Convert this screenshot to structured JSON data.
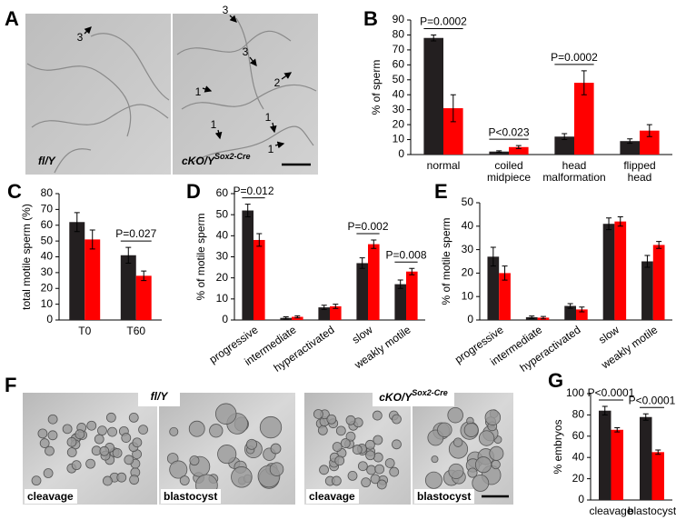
{
  "chart_data": [
    {
      "type": "bar",
      "panel": "B",
      "y_label": "% of sperm",
      "categories": [
        [
          "normal"
        ],
        [
          "coiled",
          "midpiece"
        ],
        [
          "head",
          "malformation"
        ],
        [
          "flipped",
          "head"
        ]
      ],
      "series": [
        {
          "color": "#231f20",
          "values": [
            78,
            2,
            12,
            9
          ],
          "errors": [
            2,
            0.5,
            2,
            1.5
          ]
        },
        {
          "color": "#ff0000",
          "values": [
            31,
            5,
            48,
            16
          ],
          "errors": [
            9,
            1,
            8,
            4
          ]
        }
      ],
      "annotations": [
        "P=0.0002",
        "P<0.023",
        "P=0.0002",
        null
      ],
      "ylim": [
        0,
        90
      ],
      "yticks": [
        0,
        10,
        20,
        30,
        40,
        50,
        60,
        70,
        80,
        90
      ]
    },
    {
      "type": "bar",
      "panel": "C",
      "y_label": "total motile sperm (%)",
      "categories": [
        [
          "T0"
        ],
        [
          "T60"
        ]
      ],
      "series": [
        {
          "color": "#231f20",
          "values": [
            62,
            41
          ],
          "errors": [
            6,
            5
          ]
        },
        {
          "color": "#ff0000",
          "values": [
            51,
            28
          ],
          "errors": [
            6,
            3
          ]
        }
      ],
      "annotations": [
        null,
        "P=0.027"
      ],
      "ylim": [
        0,
        80
      ],
      "yticks": [
        0,
        10,
        20,
        30,
        40,
        50,
        60,
        70,
        80
      ]
    },
    {
      "type": "bar",
      "panel": "D",
      "y_label": "% of motile sperm",
      "categories": [
        [
          "progressive"
        ],
        [
          "intermediate"
        ],
        [
          "hyperactivated"
        ],
        [
          "slow"
        ],
        [
          "weakly motile"
        ]
      ],
      "series": [
        {
          "color": "#231f20",
          "values": [
            52,
            1,
            6,
            27,
            17
          ],
          "errors": [
            3,
            0.5,
            1,
            2.5,
            2
          ]
        },
        {
          "color": "#ff0000",
          "values": [
            38,
            1.5,
            6.5,
            36,
            23
          ],
          "errors": [
            3,
            0.5,
            1,
            2,
            1.5
          ]
        }
      ],
      "annotations": [
        "P=0.012",
        null,
        null,
        "P=0.002",
        "P=0.008"
      ],
      "ylim": [
        0,
        60
      ],
      "yticks": [
        0,
        10,
        20,
        30,
        40,
        50,
        60
      ]
    },
    {
      "type": "bar",
      "panel": "E",
      "y_label": "% of motile sperm",
      "categories": [
        [
          "progressive"
        ],
        [
          "intermediate"
        ],
        [
          "hyperactivated"
        ],
        [
          "slow"
        ],
        [
          "weakly motile"
        ]
      ],
      "series": [
        {
          "color": "#231f20",
          "values": [
            27,
            1.2,
            6,
            41,
            25
          ],
          "errors": [
            4,
            0.5,
            1,
            2.5,
            2.5
          ]
        },
        {
          "color": "#ff0000",
          "values": [
            20,
            1,
            4.5,
            42,
            32
          ],
          "errors": [
            3,
            0.5,
            1,
            2,
            1.5
          ]
        }
      ],
      "annotations": [
        null,
        null,
        null,
        null,
        null
      ],
      "ylim": [
        0,
        50
      ],
      "yticks": [
        0,
        10,
        20,
        30,
        40,
        50
      ]
    },
    {
      "type": "bar",
      "panel": "G",
      "y_label": "% embryos",
      "categories": [
        [
          "cleavage"
        ],
        [
          "blastocyst"
        ]
      ],
      "series": [
        {
          "color": "#231f20",
          "values": [
            84,
            78
          ],
          "errors": [
            4,
            3
          ]
        },
        {
          "color": "#ff0000",
          "values": [
            66,
            45
          ],
          "errors": [
            2,
            2
          ]
        }
      ],
      "annotations": [
        "P<0.0001",
        "P<0.0001"
      ],
      "ylim": [
        0,
        100
      ],
      "yticks": [
        0,
        20,
        40,
        60,
        80,
        100
      ]
    }
  ],
  "images": [
    {
      "panel": "A",
      "left_label": "fl/Y",
      "right_label": "cKO/Y",
      "right_superscript": "Sox2-Cre",
      "arrows": [
        "3",
        "3",
        "3",
        "2",
        "1",
        "1",
        "1",
        "1"
      ]
    },
    {
      "panel": "F",
      "left_label": "fl/Y",
      "right_label": "cKO/Y",
      "right_superscript": "Sox2-Cre",
      "captions": [
        "cleavage",
        "blastocyst",
        "cleavage",
        "blastocyst"
      ]
    }
  ]
}
